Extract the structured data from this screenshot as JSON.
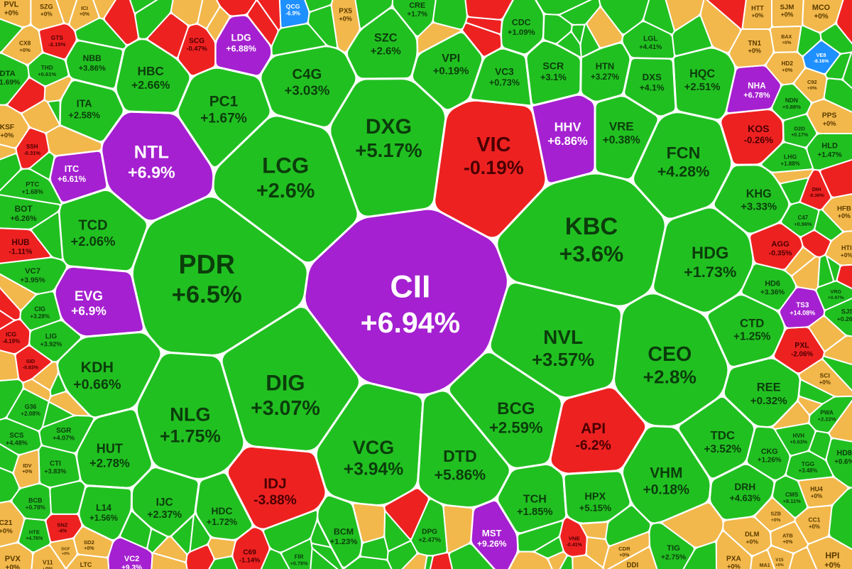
{
  "chart_data": {
    "type": "voronoi-treemap",
    "title": "",
    "colors": {
      "up": "#21c021",
      "down": "#ee2121",
      "ceiling": "#a520d0",
      "floor": "#1e90ff",
      "reference": "#f2b84b",
      "text_on_up": "#0b3d0b",
      "text_on_down": "#4a0000",
      "text_on_ceiling": "#ffffff",
      "text_on_floor": "#ffffff",
      "text_on_reference": "#5a3a00",
      "border": "#ffffff"
    },
    "cells": [
      {
        "ticker": "CII",
        "change": "+6.94%",
        "status": "ceiling",
        "weight": 100
      },
      {
        "ticker": "PDR",
        "change": "+6.5%",
        "status": "up",
        "weight": 80
      },
      {
        "ticker": "KBC",
        "change": "+3.6%",
        "status": "up",
        "weight": 78
      },
      {
        "ticker": "CEO",
        "change": "+2.8%",
        "status": "up",
        "weight": 62
      },
      {
        "ticker": "DXG",
        "change": "+5.17%",
        "status": "up",
        "weight": 46
      },
      {
        "ticker": "VIC",
        "change": "-0.19%",
        "status": "down",
        "weight": 40
      },
      {
        "ticker": "LCG",
        "change": "+2.6%",
        "status": "up",
        "weight": 38
      },
      {
        "ticker": "NTL",
        "change": "+6.9%",
        "status": "ceiling",
        "weight": 36
      },
      {
        "ticker": "FCN",
        "change": "+4.28%",
        "status": "up",
        "weight": 34
      },
      {
        "ticker": "VHM",
        "change": "+0.18%",
        "status": "up",
        "weight": 34
      },
      {
        "ticker": "NLG",
        "change": "+1.75%",
        "status": "up",
        "weight": 32
      },
      {
        "ticker": "VCG",
        "change": "+3.94%",
        "status": "up",
        "weight": 30
      },
      {
        "ticker": "KDH",
        "change": "+0.66%",
        "status": "up",
        "weight": 28
      },
      {
        "ticker": "C4G",
        "change": "+3.03%",
        "status": "up",
        "weight": 26
      },
      {
        "ticker": "IDJ",
        "change": "-3.88%",
        "status": "down",
        "weight": 26
      },
      {
        "ticker": "DTD",
        "change": "+5.86%",
        "status": "up",
        "weight": 24
      },
      {
        "ticker": "HQC",
        "change": "+2.51%",
        "status": "up",
        "weight": 22
      },
      {
        "ticker": "REE",
        "change": "+0.32%",
        "status": "up",
        "weight": 22
      },
      {
        "ticker": "BCG",
        "change": "+2.59%",
        "status": "up",
        "weight": 20
      },
      {
        "ticker": "API",
        "change": "-6.2%",
        "status": "down",
        "weight": 20
      },
      {
        "ticker": "HDG",
        "change": "+1.73%",
        "status": "up",
        "weight": 20
      },
      {
        "ticker": "PC1",
        "change": "+1.67%",
        "status": "up",
        "weight": 20
      },
      {
        "ticker": "NVL",
        "change": "+3.57%",
        "status": "up",
        "weight": 20
      },
      {
        "ticker": "DIG",
        "change": "+3.07%",
        "status": "up",
        "weight": 20
      },
      {
        "ticker": "IJC",
        "change": "+2.37%",
        "status": "up",
        "weight": 18
      },
      {
        "ticker": "HUT",
        "change": "+2.78%",
        "status": "up",
        "weight": 18
      },
      {
        "ticker": "TCD",
        "change": "+2.06%",
        "status": "up",
        "weight": 18
      },
      {
        "ticker": "ITA",
        "change": "+2.58%",
        "status": "up",
        "weight": 18
      },
      {
        "ticker": "LDG",
        "change": "+6.88%",
        "status": "ceiling",
        "weight": 16
      },
      {
        "ticker": "SCR",
        "change": "+3.1%",
        "status": "up",
        "weight": 16
      },
      {
        "ticker": "VPI",
        "change": "+0.19%",
        "status": "up",
        "weight": 16
      },
      {
        "ticker": "SZC",
        "change": "+2.6%",
        "status": "up",
        "weight": 16
      },
      {
        "ticker": "TCH",
        "change": "+1.85%",
        "status": "up",
        "weight": 14
      },
      {
        "ticker": "KHG",
        "change": "+3.33%",
        "status": "up",
        "weight": 12
      },
      {
        "ticker": "DRH",
        "change": "+4.63%",
        "status": "up",
        "weight": 12
      },
      {
        "ticker": "BCM",
        "change": "+1.23%",
        "status": "up",
        "weight": 12
      },
      {
        "ticker": "DPG",
        "change": "+2.47%",
        "status": "up",
        "weight": 12
      },
      {
        "ticker": "HPX",
        "change": "+5.15%",
        "status": "up",
        "weight": 12
      },
      {
        "ticker": "EVG",
        "change": "+6.9%",
        "status": "ceiling",
        "weight": 10
      },
      {
        "ticker": "HHV",
        "change": "+6.86%",
        "status": "ceiling",
        "weight": 10
      },
      {
        "ticker": "DXS",
        "change": "+4.1%",
        "status": "up",
        "weight": 10
      },
      {
        "ticker": "VRE",
        "change": "+0.38%",
        "status": "up",
        "weight": 10
      },
      {
        "ticker": "HBC",
        "change": "+2.66%",
        "status": "up",
        "weight": 10
      },
      {
        "ticker": "NBB",
        "change": "+3.86%",
        "status": "up",
        "weight": 10
      },
      {
        "ticker": "CTD",
        "change": "+1.25%",
        "status": "up",
        "weight": 10
      },
      {
        "ticker": "TDC",
        "change": "+3.52%",
        "status": "up",
        "weight": 10
      },
      {
        "ticker": "HDC",
        "change": "+1.72%",
        "status": "up",
        "weight": 10
      },
      {
        "ticker": "L14",
        "change": "+1.56%",
        "status": "up",
        "weight": 9
      },
      {
        "ticker": "G36",
        "change": "+2.08%",
        "status": "up",
        "weight": 9
      },
      {
        "ticker": "VC7",
        "change": "+3.95%",
        "status": "up",
        "weight": 8
      },
      {
        "ticker": "KOS",
        "change": "-0.26%",
        "status": "down",
        "weight": 8
      },
      {
        "ticker": "AGG",
        "change": "-0.35%",
        "status": "down",
        "weight": 8
      },
      {
        "ticker": "PXL",
        "change": "-2.06%",
        "status": "down",
        "weight": 8
      },
      {
        "ticker": "ITC",
        "change": "+6.61%",
        "status": "ceiling",
        "weight": 8
      },
      {
        "ticker": "MST",
        "change": "+9.26%",
        "status": "ceiling",
        "weight": 7
      },
      {
        "ticker": "NHA",
        "change": "+6.78%",
        "status": "ceiling",
        "weight": 6
      },
      {
        "ticker": "TS3",
        "change": "+14.08%",
        "status": "ceiling",
        "weight": 5
      },
      {
        "ticker": "VC2",
        "change": "+9.3%",
        "status": "ceiling",
        "weight": 6
      },
      {
        "ticker": "QCG",
        "change": "-6.9%",
        "status": "floor",
        "weight": 7
      },
      {
        "ticker": "VE8",
        "change": "-8.16%",
        "status": "floor",
        "weight": 7
      },
      {
        "ticker": "HTN",
        "change": "+3.27%",
        "status": "up",
        "weight": 7
      },
      {
        "ticker": "CIG",
        "change": "+3.28%",
        "status": "up",
        "weight": 6
      },
      {
        "ticker": "CTI",
        "change": "+3.83%",
        "status": "up",
        "weight": 6
      },
      {
        "ticker": "BOT",
        "change": "+6.26%",
        "status": "up",
        "weight": 5
      },
      {
        "ticker": "PTC",
        "change": "+1.68%",
        "status": "up",
        "weight": 5
      },
      {
        "ticker": "LIG",
        "change": "+3.92%",
        "status": "up",
        "weight": 5
      },
      {
        "ticker": "HUB",
        "change": "-1.11%",
        "status": "down",
        "weight": 5
      },
      {
        "ticker": "SSH",
        "change": "-0.31%",
        "status": "down",
        "weight": 5
      },
      {
        "ticker": "CMS",
        "change": "+8.11%",
        "status": "up",
        "weight": 6
      },
      {
        "ticker": "CKG",
        "change": "+1.26%",
        "status": "up",
        "weight": 5
      },
      {
        "ticker": "TGG",
        "change": "+3.48%",
        "status": "up",
        "weight": 5
      },
      {
        "ticker": "HVH",
        "change": "+0.63%",
        "status": "up",
        "weight": 5
      },
      {
        "ticker": "TIG",
        "change": "+2.75%",
        "status": "up",
        "weight": 6
      },
      {
        "ticker": "VNE",
        "change": "-0.41%",
        "status": "down",
        "weight": 4
      },
      {
        "ticker": "HTE",
        "change": "+4.76%",
        "status": "up",
        "weight": 4
      },
      {
        "ticker": "BCB",
        "change": "+0.78%",
        "status": "up",
        "weight": 4
      },
      {
        "ticker": "FIR",
        "change": "+0.78%",
        "status": "up",
        "weight": 5
      },
      {
        "ticker": "C69",
        "change": "-1.14%",
        "status": "down",
        "weight": 4
      },
      {
        "ticker": "SNZ",
        "change": "-4%",
        "status": "down",
        "weight": 4
      },
      {
        "ticker": "SCS",
        "change": "+4.48%",
        "status": "up",
        "weight": 4
      },
      {
        "ticker": "SGR",
        "change": "+4.07%",
        "status": "up",
        "weight": 4
      },
      {
        "ticker": "DTA",
        "change": "+1.69%",
        "status": "up",
        "weight": 4
      },
      {
        "ticker": "THD",
        "change": "+0.61%",
        "status": "up",
        "weight": 4
      },
      {
        "ticker": "CDC",
        "change": "+1.09%",
        "status": "up",
        "weight": 4
      },
      {
        "ticker": "VC3",
        "change": "+0.73%",
        "status": "up",
        "weight": 4
      },
      {
        "ticker": "LGL",
        "change": "+4.41%",
        "status": "up",
        "weight": 4
      },
      {
        "ticker": "NDN",
        "change": "+0.88%",
        "status": "up",
        "weight": 4
      },
      {
        "ticker": "D2D",
        "change": "+0.17%",
        "status": "up",
        "weight": 4
      },
      {
        "ticker": "LHG",
        "change": "+1.88%",
        "status": "up",
        "weight": 4
      },
      {
        "ticker": "HLD",
        "change": "+1.47%",
        "status": "up",
        "weight": 3
      },
      {
        "ticker": "C47",
        "change": "+0.96%",
        "status": "up",
        "weight": 3
      },
      {
        "ticker": "HD6",
        "change": "+3.36%",
        "status": "up",
        "weight": 3
      },
      {
        "ticker": "VRG",
        "change": "+0.97%",
        "status": "up",
        "weight": 3
      },
      {
        "ticker": "PWA",
        "change": "+2.22%",
        "status": "up",
        "weight": 3
      },
      {
        "ticker": "HD8",
        "change": "+0.6%",
        "status": "up",
        "weight": 3
      },
      {
        "ticker": "DIH",
        "change": "-0.36%",
        "status": "down",
        "weight": 3
      },
      {
        "ticker": "SJS",
        "change": "+0.26%",
        "status": "up",
        "weight": 2
      },
      {
        "ticker": "ICG",
        "change": "-4.19%",
        "status": "down",
        "weight": 3
      },
      {
        "ticker": "SID",
        "change": "-0.83%",
        "status": "down",
        "weight": 2
      },
      {
        "ticker": "GTS",
        "change": "-2.15%",
        "status": "down",
        "weight": 2
      },
      {
        "ticker": "SCG",
        "change": "-0.47%",
        "status": "down",
        "weight": 3
      },
      {
        "ticker": "PVL",
        "change": "+0%",
        "status": "reference",
        "weight": 5
      },
      {
        "ticker": "SZG",
        "change": "+0%",
        "status": "reference",
        "weight": 4
      },
      {
        "ticker": "ICI",
        "change": "+0%",
        "status": "reference",
        "weight": 4
      },
      {
        "ticker": "CX8",
        "change": "+0%",
        "status": "reference",
        "weight": 4
      },
      {
        "ticker": "PX5",
        "change": "+0%",
        "status": "reference",
        "weight": 3
      },
      {
        "ticker": "CRE",
        "change": "+1.7%",
        "status": "up",
        "weight": 3
      },
      {
        "ticker": "HTT",
        "change": "+0%",
        "status": "reference",
        "weight": 3
      },
      {
        "ticker": "SJM",
        "change": "+0%",
        "status": "reference",
        "weight": 3
      },
      {
        "ticker": "MCO",
        "change": "+0%",
        "status": "reference",
        "weight": 5
      },
      {
        "ticker": "BAX",
        "change": "+0%",
        "status": "reference",
        "weight": 3
      },
      {
        "ticker": "TN1",
        "change": "+0%",
        "status": "reference",
        "weight": 3
      },
      {
        "ticker": "HD2",
        "change": "+0%",
        "status": "reference",
        "weight": 3
      },
      {
        "ticker": "C92",
        "change": "+0%",
        "status": "reference",
        "weight": 3
      },
      {
        "ticker": "PPS",
        "change": "+0%",
        "status": "reference",
        "weight": 3
      },
      {
        "ticker": "KSF",
        "change": "+0%",
        "status": "reference",
        "weight": 3
      },
      {
        "ticker": "HFB",
        "change": "+0%",
        "status": "reference",
        "weight": 3
      },
      {
        "ticker": "HTI",
        "change": "+0%",
        "status": "reference",
        "weight": 3
      },
      {
        "ticker": "SCI",
        "change": "+0%",
        "status": "reference",
        "weight": 3
      },
      {
        "ticker": "IDV",
        "change": "+0%",
        "status": "reference",
        "weight": 3
      },
      {
        "ticker": "HU4",
        "change": "+0%",
        "status": "reference",
        "weight": 4
      },
      {
        "ticker": "CC1",
        "change": "+0%",
        "status": "reference",
        "weight": 4
      },
      {
        "ticker": "C21",
        "change": "+0%",
        "status": "reference",
        "weight": 4
      },
      {
        "ticker": "ATB",
        "change": "+0%",
        "status": "reference",
        "weight": 3
      },
      {
        "ticker": "HPI",
        "change": "+0%",
        "status": "reference",
        "weight": 3
      },
      {
        "ticker": "V15",
        "change": "+0%",
        "status": "reference",
        "weight": 3
      },
      {
        "ticker": "PVX",
        "change": "+0%",
        "status": "reference",
        "weight": 3
      },
      {
        "ticker": "V11",
        "change": "+0%",
        "status": "reference",
        "weight": 3
      },
      {
        "ticker": "PXA",
        "change": "+0%",
        "status": "reference",
        "weight": 3
      },
      {
        "ticker": "MA1",
        "change": "+0%",
        "status": "reference",
        "weight": 3
      },
      {
        "ticker": "DLM",
        "change": "+0%",
        "status": "reference",
        "weight": 2
      },
      {
        "ticker": "SZB",
        "change": "+0%",
        "status": "reference",
        "weight": 2
      },
      {
        "ticker": "SD2",
        "change": "+0%",
        "status": "reference",
        "weight": 2
      },
      {
        "ticker": "DCF",
        "change": "+0%",
        "status": "reference",
        "weight": 2
      },
      {
        "ticker": "LTC",
        "change": "+0%",
        "status": "reference",
        "weight": 2
      },
      {
        "ticker": "CDR",
        "change": "+0%",
        "status": "reference",
        "weight": 2
      },
      {
        "ticker": "DDI",
        "change": "+0%",
        "status": "reference",
        "weight": 2
      }
    ]
  }
}
